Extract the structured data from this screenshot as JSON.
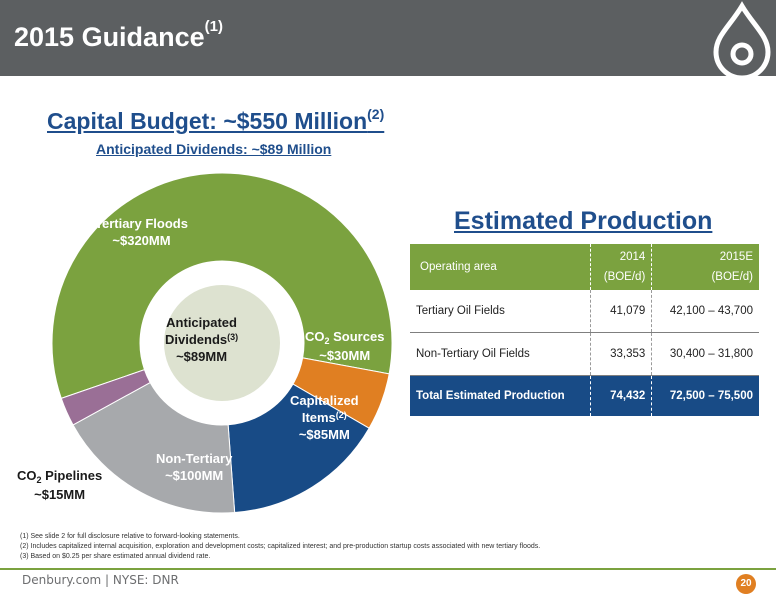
{
  "header": {
    "title": "2015 Guidance",
    "title_sup": "(1)"
  },
  "budget": {
    "title": "Capital Budget: ~$550 Million",
    "title_sup": "(2)",
    "subtitle": "Anticipated Dividends: ~$89 Million"
  },
  "chart_data": {
    "type": "pie",
    "subtype": "donut",
    "unit": "$MM",
    "slices": [
      {
        "name": "Tertiary Floods",
        "value": 320,
        "display": "~$320MM",
        "color": "#7ba23f"
      },
      {
        "name": "CO2 Sources",
        "value": 30,
        "display": "~$30MM",
        "color": "#e07f22"
      },
      {
        "name": "Capitalized Items",
        "name_sup": "(2)",
        "value": 85,
        "display": "~$85MM",
        "color": "#184b86"
      },
      {
        "name": "Non-Tertiary",
        "value": 100,
        "display": "~$100MM",
        "color": "#a7a9ac"
      },
      {
        "name": "CO2 Pipelines",
        "value": 15,
        "display": "~$15MM",
        "color": "#9a6f96"
      }
    ],
    "center": {
      "line1": "Anticipated",
      "line2": "Dividends",
      "line2_sup": "(3)",
      "line3": "~$89MM",
      "color": "#dde2d0"
    }
  },
  "labels": {
    "tertiary": {
      "l1": "Tertiary Floods",
      "l2": "~$320MM"
    },
    "co2_sources": {
      "l1a": "CO",
      "l1sub": "2",
      "l1b": " Sources",
      "l2": "~$30MM"
    },
    "capitalized": {
      "l1": "Capitalized",
      "l2": "Items",
      "l2sup": "(2)",
      "l3": "~$85MM"
    },
    "non_tertiary": {
      "l1": "Non-Tertiary",
      "l2": "~$100MM"
    },
    "co2_pipelines": {
      "l1a": "CO",
      "l1sub": "2",
      "l1b": " Pipelines",
      "l2": "~$15MM"
    }
  },
  "production": {
    "title": "Estimated Production",
    "headers": {
      "area": "Operating area",
      "c2014a": "2014",
      "c2014b": "(BOE/d)",
      "c2015a": "2015E",
      "c2015b": "(BOE/d)"
    },
    "rows": [
      {
        "area": "Tertiary Oil Fields",
        "v2014": "41,079",
        "v2015": "42,100 – 43,700"
      },
      {
        "area": "Non-Tertiary Oil Fields",
        "v2014": "33,353",
        "v2015": "30,400 – 31,800"
      }
    ],
    "total": {
      "area": "Total Estimated Production",
      "v2014": "74,432",
      "v2015": "72,500 – 75,500"
    }
  },
  "footnotes": [
    "(1)  See slide 2 for full disclosure relative to forward-looking statements.",
    "(2)  Includes capitalized internal acquisition, exploration and development costs; capitalized interest; and pre-production startup costs associated with new tertiary floods.",
    "(3)  Based on $0.25 per share estimated annual dividend rate."
  ],
  "footer": {
    "text": "Denbury.com | NYSE: DNR",
    "page": "20"
  },
  "colors": {
    "header": "#5c5f61",
    "brand_blue": "#1f4e8c",
    "brand_green": "#7ba23f",
    "accent_orange": "#e07f22"
  }
}
